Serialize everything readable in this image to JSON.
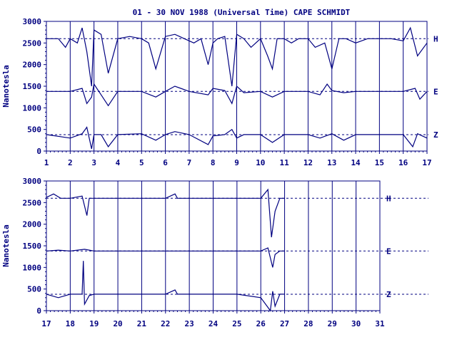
{
  "chart_data": {
    "type": "line",
    "title": "01 - 30 NOV 1988 (Universal Time) CAPE SCHMIDT",
    "ylabel": "Nanotesla",
    "line_color": "#000080",
    "grid": true,
    "panels": [
      {
        "xlim": [
          1,
          17
        ],
        "ylim": [
          0,
          3000
        ],
        "xticks": [
          1,
          2,
          3,
          4,
          5,
          6,
          7,
          8,
          9,
          10,
          11,
          12,
          13,
          14,
          15,
          16,
          17
        ],
        "yticks": [
          0,
          500,
          1000,
          1500,
          2000,
          2500,
          3000
        ],
        "series": [
          {
            "name": "H",
            "baseline": 2600,
            "x": [
              1,
              1.5,
              1.8,
              2.0,
              2.3,
              2.5,
              2.7,
              2.9,
              3.0,
              3.3,
              3.6,
              4.0,
              4.5,
              5.0,
              5.3,
              5.6,
              6.0,
              6.4,
              6.8,
              7.2,
              7.5,
              7.8,
              8.0,
              8.2,
              8.5,
              8.8,
              9.0,
              9.3,
              9.6,
              10.0,
              10.3,
              10.5,
              10.7,
              11.0,
              11.3,
              11.6,
              12.0,
              12.3,
              12.7,
              13.0,
              13.3,
              13.6,
              14.0,
              14.5,
              15.0,
              15.5,
              16.0,
              16.3,
              16.6,
              17.0
            ],
            "values": [
              2600,
              2600,
              2400,
              2600,
              2500,
              2850,
              2300,
              1500,
              2800,
              2700,
              1800,
              2600,
              2650,
              2600,
              2500,
              1900,
              2650,
              2700,
              2600,
              2500,
              2600,
              2000,
              2500,
              2600,
              2650,
              1500,
              2700,
              2600,
              2400,
              2600,
              2200,
              1900,
              2600,
              2600,
              2500,
              2600,
              2600,
              2400,
              2500,
              1900,
              2600,
              2600,
              2500,
              2600,
              2600,
              2600,
              2550,
              2850,
              2200,
              2500
            ]
          },
          {
            "name": "E",
            "baseline": 1380,
            "x": [
              1,
              2.0,
              2.5,
              2.7,
              2.9,
              3.0,
              3.3,
              3.6,
              4.0,
              5.0,
              5.6,
              6.0,
              6.4,
              7.0,
              7.8,
              8.0,
              8.5,
              8.8,
              9.0,
              9.3,
              10.0,
              10.5,
              11.0,
              12.0,
              12.5,
              12.8,
              13.0,
              13.5,
              14.0,
              15.0,
              16.0,
              16.5,
              16.7,
              17.0
            ],
            "values": [
              1380,
              1380,
              1450,
              1100,
              1250,
              1550,
              1300,
              1050,
              1380,
              1380,
              1250,
              1380,
              1500,
              1380,
              1300,
              1450,
              1400,
              1100,
              1500,
              1350,
              1380,
              1250,
              1380,
              1380,
              1300,
              1550,
              1400,
              1350,
              1380,
              1380,
              1380,
              1450,
              1200,
              1380
            ]
          },
          {
            "name": "Z",
            "baseline": 380,
            "x": [
              1,
              2.0,
              2.5,
              2.7,
              2.9,
              3.0,
              3.3,
              3.6,
              4.0,
              5.0,
              5.6,
              6.0,
              6.4,
              7.0,
              7.8,
              8.0,
              8.5,
              8.8,
              9.0,
              9.3,
              10.0,
              10.5,
              11.0,
              12.0,
              12.5,
              13.0,
              13.5,
              14.0,
              15.0,
              16.0,
              16.4,
              16.6,
              17.0
            ],
            "values": [
              380,
              300,
              400,
              550,
              50,
              380,
              380,
              100,
              380,
              400,
              250,
              380,
              450,
              380,
              150,
              350,
              380,
              500,
              300,
              380,
              380,
              200,
              380,
              380,
              300,
              400,
              250,
              380,
              380,
              380,
              100,
              400,
              300
            ]
          }
        ]
      },
      {
        "xlim": [
          17,
          31
        ],
        "ylim": [
          0,
          3000
        ],
        "xticks": [
          17,
          18,
          19,
          20,
          21,
          22,
          23,
          24,
          25,
          26,
          27,
          28,
          29,
          30,
          31
        ],
        "yticks": [
          0,
          500,
          1000,
          1500,
          2000,
          2500,
          3000
        ],
        "series": [
          {
            "name": "H",
            "baseline": 2600,
            "x": [
              17,
              17.3,
              17.6,
              18.0,
              18.5,
              18.7,
              18.8,
              19.0,
              20.0,
              21.0,
              22.0,
              22.4,
              22.5,
              23.0,
              24.0,
              25.0,
              26.0,
              26.3,
              26.45,
              26.6,
              26.8,
              27.0
            ],
            "values": [
              2620,
              2700,
              2600,
              2600,
              2650,
              2200,
              2600,
              2600,
              2600,
              2600,
              2600,
              2700,
              2600,
              2600,
              2600,
              2600,
              2600,
              2800,
              1700,
              2300,
              2600,
              2600
            ]
          },
          {
            "name": "E",
            "baseline": 1380,
            "x": [
              17,
              17.5,
              18.0,
              18.6,
              19.0,
              20.0,
              21.0,
              22.0,
              23.0,
              24.0,
              25.0,
              26.0,
              26.3,
              26.5,
              26.6,
              26.8,
              27.0
            ],
            "values": [
              1380,
              1400,
              1380,
              1420,
              1380,
              1380,
              1380,
              1380,
              1380,
              1380,
              1380,
              1380,
              1450,
              1000,
              1300,
              1380,
              1380
            ]
          },
          {
            "name": "Z",
            "baseline": 380,
            "x": [
              17,
              17.5,
              18.0,
              18.5,
              18.55,
              18.6,
              18.8,
              19.0,
              20.0,
              21.0,
              22.0,
              22.4,
              22.5,
              23.0,
              24.0,
              25.0,
              26.0,
              26.4,
              26.5,
              26.6,
              26.8,
              27.0
            ],
            "values": [
              380,
              300,
              380,
              380,
              1150,
              150,
              350,
              380,
              380,
              380,
              380,
              480,
              380,
              380,
              380,
              380,
              300,
              0,
              450,
              100,
              380,
              380
            ]
          }
        ]
      }
    ]
  }
}
